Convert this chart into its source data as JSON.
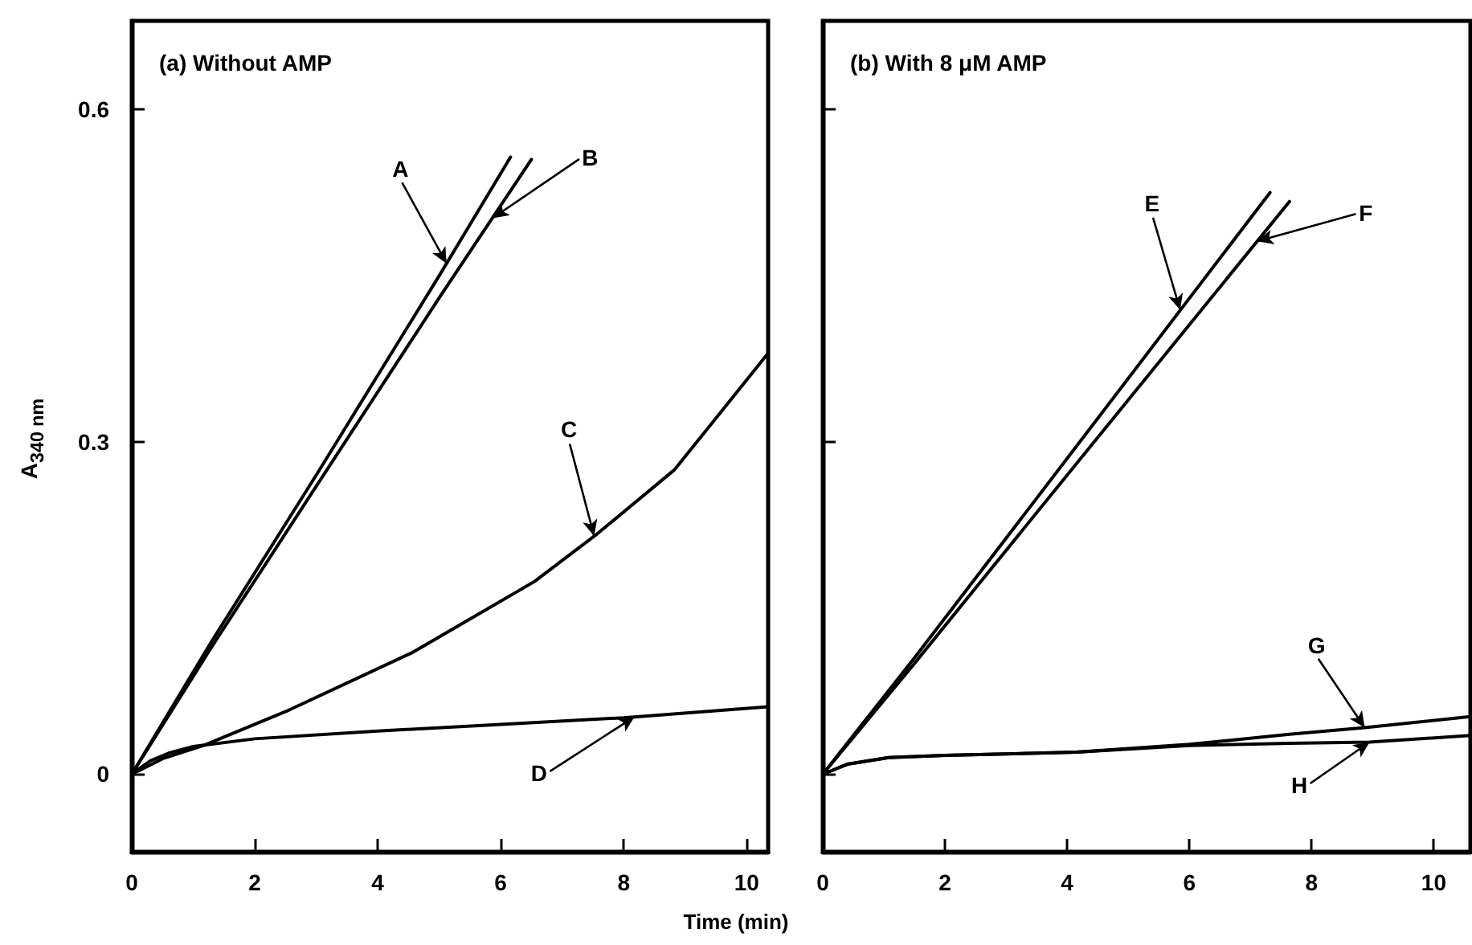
{
  "chart_data": [
    {
      "type": "line",
      "title": "(a) Without AMP",
      "xlabel": "Time (min)",
      "ylabel": "A$_{340 nm}$",
      "xlim": [
        0,
        10.35
      ],
      "ylim": [
        -0.07,
        0.68
      ],
      "xticks": [
        0,
        2,
        4,
        6,
        8,
        10
      ],
      "yticks": [
        0,
        0.3,
        0.6
      ],
      "marker": "none",
      "line_style": "solid",
      "series": [
        {
          "color": "#000000",
          "x": [
            0,
            1.3,
            3,
            5,
            6.16
          ],
          "values": [
            0,
            0.12,
            0.27,
            0.45,
            0.557
          ]
        },
        {
          "color": "#000000",
          "x": [
            0,
            1.3,
            3,
            5,
            6.5
          ],
          "values": [
            0,
            0.115,
            0.26,
            0.43,
            0.555
          ]
        },
        {
          "color": "#000000",
          "x": [
            0,
            0.5,
            1.17,
            2.56,
            4.57,
            6.55,
            7.57,
            8.83,
            10.35
          ],
          "values": [
            0,
            0.014,
            0.026,
            0.058,
            0.11,
            0.174,
            0.217,
            0.275,
            0.38
          ]
        },
        {
          "color": "#000000",
          "x": [
            0,
            0.3,
            0.6,
            1,
            2,
            4,
            6,
            8,
            10.35
          ],
          "values": [
            0,
            0.012,
            0.019,
            0.025,
            0.032,
            0.039,
            0.045,
            0.051,
            0.061
          ]
        }
      ],
      "annotations": [
        {
          "text": "A",
          "x": 5.12,
          "y": 0.461
        },
        {
          "text": "B",
          "x": 5.87,
          "y": 0.502
        },
        {
          "text": "C",
          "x": 7.52,
          "y": 0.215
        },
        {
          "text": "D",
          "x": 8.18,
          "y": 0.052
        }
      ]
    },
    {
      "type": "line",
      "title": "(b) With 8 μM AMP",
      "xlim": [
        0,
        10.6
      ],
      "ylim": [
        -0.07,
        0.68
      ],
      "xticks": [
        0,
        2,
        4,
        6,
        8,
        10
      ],
      "yticks": [
        0,
        0.3,
        0.6
      ],
      "tick_labels": "x",
      "marker": "none",
      "line_style": "solid",
      "series": [
        {
          "color": "#000000",
          "x": [
            0,
            1.5,
            4,
            7.32
          ],
          "values": [
            0,
            0.105,
            0.285,
            0.525
          ]
        },
        {
          "color": "#000000",
          "x": [
            0,
            1.5,
            4,
            7.64
          ],
          "values": [
            0,
            0.1,
            0.27,
            0.517
          ]
        },
        {
          "color": "#000000",
          "x": [
            0,
            0.4,
            1.08,
            2,
            4.15,
            6,
            7.64,
            8.87,
            10.6
          ],
          "values": [
            0,
            0.009,
            0.015,
            0.017,
            0.02,
            0.027,
            0.036,
            0.042,
            0.052
          ]
        },
        {
          "color": "#000000",
          "x": [
            0,
            0.4,
            1.08,
            2,
            4.15,
            6,
            7.64,
            8.95,
            10.6
          ],
          "values": [
            0,
            0.009,
            0.015,
            0.017,
            0.02,
            0.026,
            0.028,
            0.029,
            0.035
          ]
        }
      ],
      "annotations": [
        {
          "text": "E",
          "x": 5.85,
          "y": 0.419
        },
        {
          "text": "F",
          "x": 7.11,
          "y": 0.481
        },
        {
          "text": "G",
          "x": 8.87,
          "y": 0.042
        },
        {
          "text": "H",
          "x": 8.95,
          "y": 0.029
        }
      ]
    }
  ]
}
